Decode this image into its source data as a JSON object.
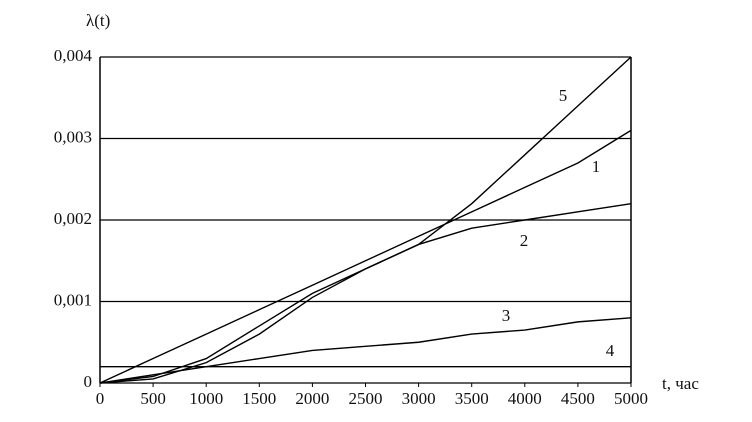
{
  "chart_data": {
    "type": "line",
    "y_label": "λ(t)",
    "x_label": "t, час",
    "x": [
      0,
      500,
      1000,
      1500,
      2000,
      2500,
      3000,
      3500,
      4000,
      4500,
      5000
    ],
    "series": [
      {
        "name": "1",
        "color": "#000000",
        "values": [
          0,
          0.0003,
          0.0006,
          0.0009,
          0.0012,
          0.0015,
          0.0018,
          0.0021,
          0.0024,
          0.0027,
          0.0031
        ]
      },
      {
        "name": "2",
        "color": "#000000",
        "values": [
          0,
          8e-05,
          0.0003,
          0.0007,
          0.0011,
          0.0014,
          0.0017,
          0.0019,
          0.002,
          0.0021,
          0.0022
        ]
      },
      {
        "name": "3",
        "color": "#000000",
        "values": [
          0,
          0.0001,
          0.0002,
          0.0003,
          0.0004,
          0.00045,
          0.0005,
          0.0006,
          0.00065,
          0.00075,
          0.0008
        ]
      },
      {
        "name": "4",
        "color": "#000000",
        "values": [
          0.0002,
          0.0002,
          0.0002,
          0.0002,
          0.0002,
          0.0002,
          0.0002,
          0.0002,
          0.0002,
          0.0002,
          0.0002
        ]
      },
      {
        "name": "5",
        "color": "#000000",
        "values": [
          0,
          5e-05,
          0.00025,
          0.0006,
          0.00105,
          0.0014,
          0.0017,
          0.0022,
          0.0028,
          0.0034,
          0.004
        ]
      }
    ],
    "xlim": [
      0,
      5000
    ],
    "xticks": [
      0,
      500,
      1000,
      1500,
      2000,
      2500,
      3000,
      3500,
      4000,
      4500,
      5000
    ],
    "ylim": [
      0,
      0.004
    ],
    "yticks": [
      0,
      {
        "value": 0.001,
        "label": "0,001"
      },
      {
        "value": 0.002,
        "label": "0,002"
      },
      {
        "value": 0.003,
        "label": "0,003"
      },
      {
        "value": 0.004,
        "label": "0,004"
      }
    ],
    "grid": true
  }
}
